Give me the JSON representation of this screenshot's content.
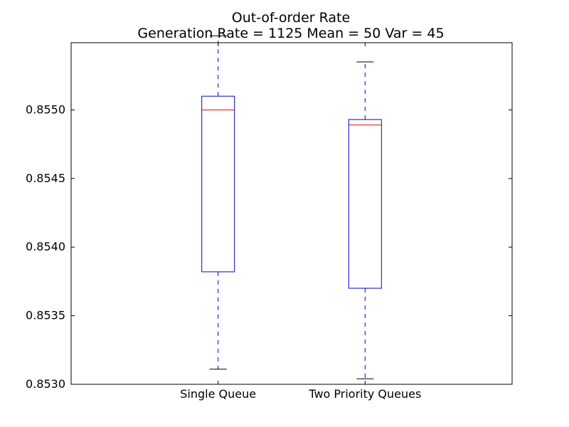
{
  "chart_data": {
    "type": "box",
    "title": "Out-of-order Rate",
    "subtitle": "Generation Rate = 1125 Mean = 50 Var = 45",
    "xlabel": "",
    "ylabel": "",
    "categories": [
      "Single Queue",
      "Two Priority Queues"
    ],
    "ylim": [
      0.853,
      0.85549
    ],
    "yticks": [
      0.853,
      0.8535,
      0.854,
      0.8545,
      0.855
    ],
    "ytick_labels": [
      "0.8530",
      "0.8535",
      "0.8540",
      "0.8545",
      "0.8550"
    ],
    "grid": false,
    "boxes": [
      {
        "name": "Single Queue",
        "whisker_low": 0.85311,
        "q1": 0.85382,
        "median": 0.855,
        "q3": 0.8551,
        "whisker_high": 0.85554
      },
      {
        "name": "Two Priority Queues",
        "whisker_low": 0.85304,
        "q1": 0.8537,
        "median": 0.85489,
        "q3": 0.85493,
        "whisker_high": 0.85535
      }
    ],
    "colors": {
      "box": "#0000ff",
      "median": "#ff0000",
      "whisker": "#0000ff",
      "cap": "#000000",
      "axis": "#000000"
    }
  }
}
